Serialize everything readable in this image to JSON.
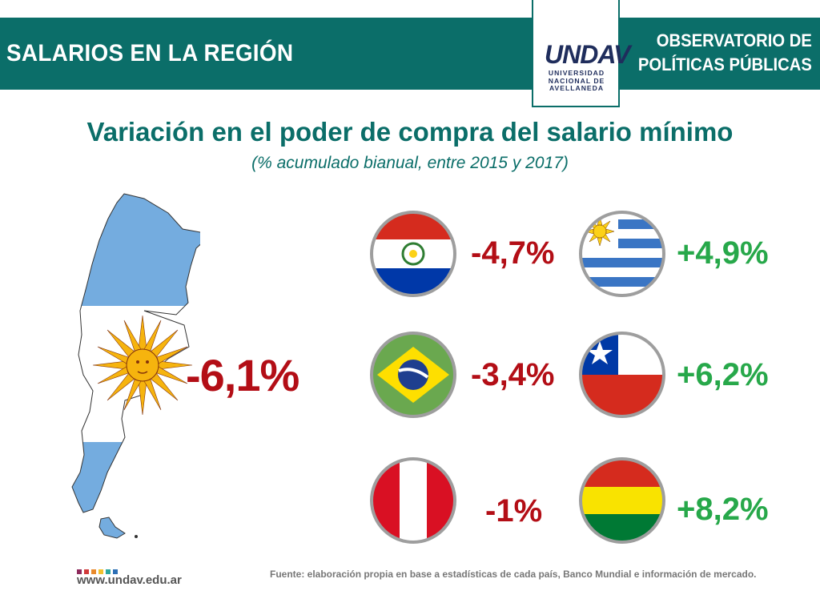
{
  "header": {
    "title": "SALARIOS EN LA REGIÓN",
    "observatory_line1": "OBSERVATORIO DE",
    "observatory_line2": "POLÍTICAS PÚBLICAS",
    "color": "#0b6e69"
  },
  "logo": {
    "mark": "UNDAV",
    "line1": "UNIVERSIDAD",
    "line2": "NACIONAL DE",
    "line3": "AVELLANEDA"
  },
  "title": "Variación en el poder de compra del salario mínimo",
  "subtitle": "(% acumulado bianual, entre 2015 y 2017)",
  "argentina": {
    "icon": "argentina-map-flag-icon",
    "value": "-6,1%"
  },
  "countries": [
    {
      "icon": "paraguay-flag-icon",
      "value": "-4,7%"
    },
    {
      "icon": "uruguay-flag-icon",
      "value": "+4,9%"
    },
    {
      "icon": "brazil-flag-icon",
      "value": "-3,4%"
    },
    {
      "icon": "chile-flag-icon",
      "value": "+6,2%"
    },
    {
      "icon": "peru-flag-icon",
      "value": "-1%"
    },
    {
      "icon": "bolivia-flag-icon",
      "value": "+8,2%"
    }
  ],
  "colors": {
    "negative": "#b30e16",
    "positive": "#27a84a"
  },
  "footer": {
    "url": "www.undav.edu.ar",
    "source": "Fuente: elaboración propia en base a estadísticas de cada país, Banco Mundial e información de mercado."
  }
}
